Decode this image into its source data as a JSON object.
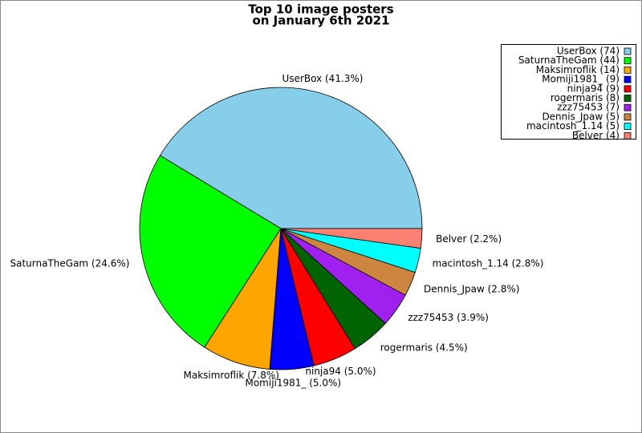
{
  "chart_data": {
    "type": "pie",
    "title": [
      "Top 10 image posters",
      "on January 6th 2021"
    ],
    "values": [
      74,
      44,
      14,
      9,
      9,
      8,
      7,
      5,
      5,
      4
    ],
    "labels": [
      "UserBox (41.3%)",
      "SaturnaTheGam (24.6%)",
      "Maksimroflik (7.8%)",
      "Momiji1981_ (5.0%)",
      "ninja94 (5.0%)",
      "rogermaris (4.5%)",
      "zzz75453 (3.9%)",
      "Dennis_Jpaw (2.8%)",
      "macintosh_1.14 (2.8%)",
      "Belver (2.2%)"
    ],
    "value_labels": [
      "UserBox (74)",
      "SaturnaTheGam (44)",
      "Maksimroflik (14)",
      "Momiji1981_ (9)",
      "ninja94 (9)",
      "rogermaris (8)",
      "zzz75453 (7)",
      "Dennis_Jpaw (5)",
      "macintosh_1.14 (5)",
      "Belver (4)"
    ],
    "colors": [
      "#87ceeb",
      "#00ff00",
      "#ffa500",
      "#0000ff",
      "#ff0000",
      "#006400",
      "#a020f0",
      "#cd853f",
      "#00ffff",
      "#fa8072"
    ],
    "legend": "upper right"
  }
}
